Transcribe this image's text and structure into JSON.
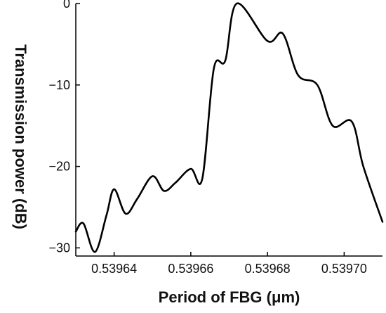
{
  "chart_data": {
    "type": "line",
    "title": "",
    "xlabel": "Period of FBG (μm)",
    "ylabel": "Transmission power (dB)",
    "xlim": [
      0.53963,
      0.53971
    ],
    "ylim": [
      -31,
      0
    ],
    "xticks": [
      0.53964,
      0.53966,
      0.53968,
      0.5397
    ],
    "xtick_labels": [
      "0.53964",
      "0.53966",
      "0.53968",
      "0.53970"
    ],
    "yticks": [
      0,
      -10,
      -20,
      -30
    ],
    "ytick_labels": [
      "0",
      "−10",
      "−20",
      "−30"
    ],
    "grid": false,
    "legend": "none",
    "line_color": "#000000",
    "series": [
      {
        "x": [
          0.53963,
          0.539632,
          0.539635,
          0.539638,
          0.53964,
          0.539643,
          0.539646,
          0.53965,
          0.539653,
          0.539656,
          0.53966,
          0.539663,
          0.539666,
          0.539669,
          0.539672,
          0.53968,
          0.539684,
          0.539688,
          0.539693,
          0.539697,
          0.539702,
          0.539705,
          0.53971
        ],
        "y": [
          -28.0,
          -27.0,
          -30.5,
          -26.0,
          -22.8,
          -25.8,
          -24.0,
          -21.2,
          -23.0,
          -22.0,
          -20.3,
          -21.5,
          -8.0,
          -7.0,
          0.0,
          -4.6,
          -3.7,
          -8.8,
          -10.0,
          -15.0,
          -14.5,
          -20.0,
          -26.8
        ]
      }
    ]
  }
}
